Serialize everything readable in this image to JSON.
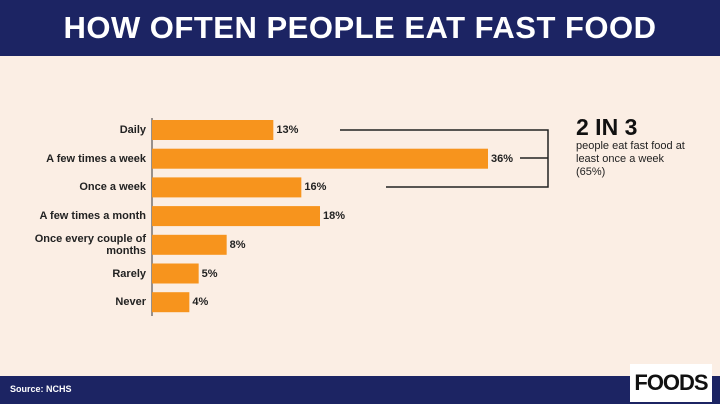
{
  "chart_data": {
    "type": "bar",
    "orientation": "horizontal",
    "title": "HOW OFTEN PEOPLE EAT FAST FOOD",
    "categories": [
      "Daily",
      "A few times a week",
      "Once a week",
      "A few times a month",
      "Once every couple of months",
      "Rarely",
      "Never"
    ],
    "values": [
      13,
      36,
      16,
      18,
      8,
      5,
      4
    ],
    "value_labels": [
      "13%",
      "36%",
      "16%",
      "18%",
      "8%",
      "5%",
      "4%"
    ],
    "color": "#f7941d",
    "annotation": {
      "title": "2 IN 3",
      "text": "people eat fast food at least once a week (65%)"
    },
    "source": "Source: NCHS"
  },
  "logo": "FOODS"
}
